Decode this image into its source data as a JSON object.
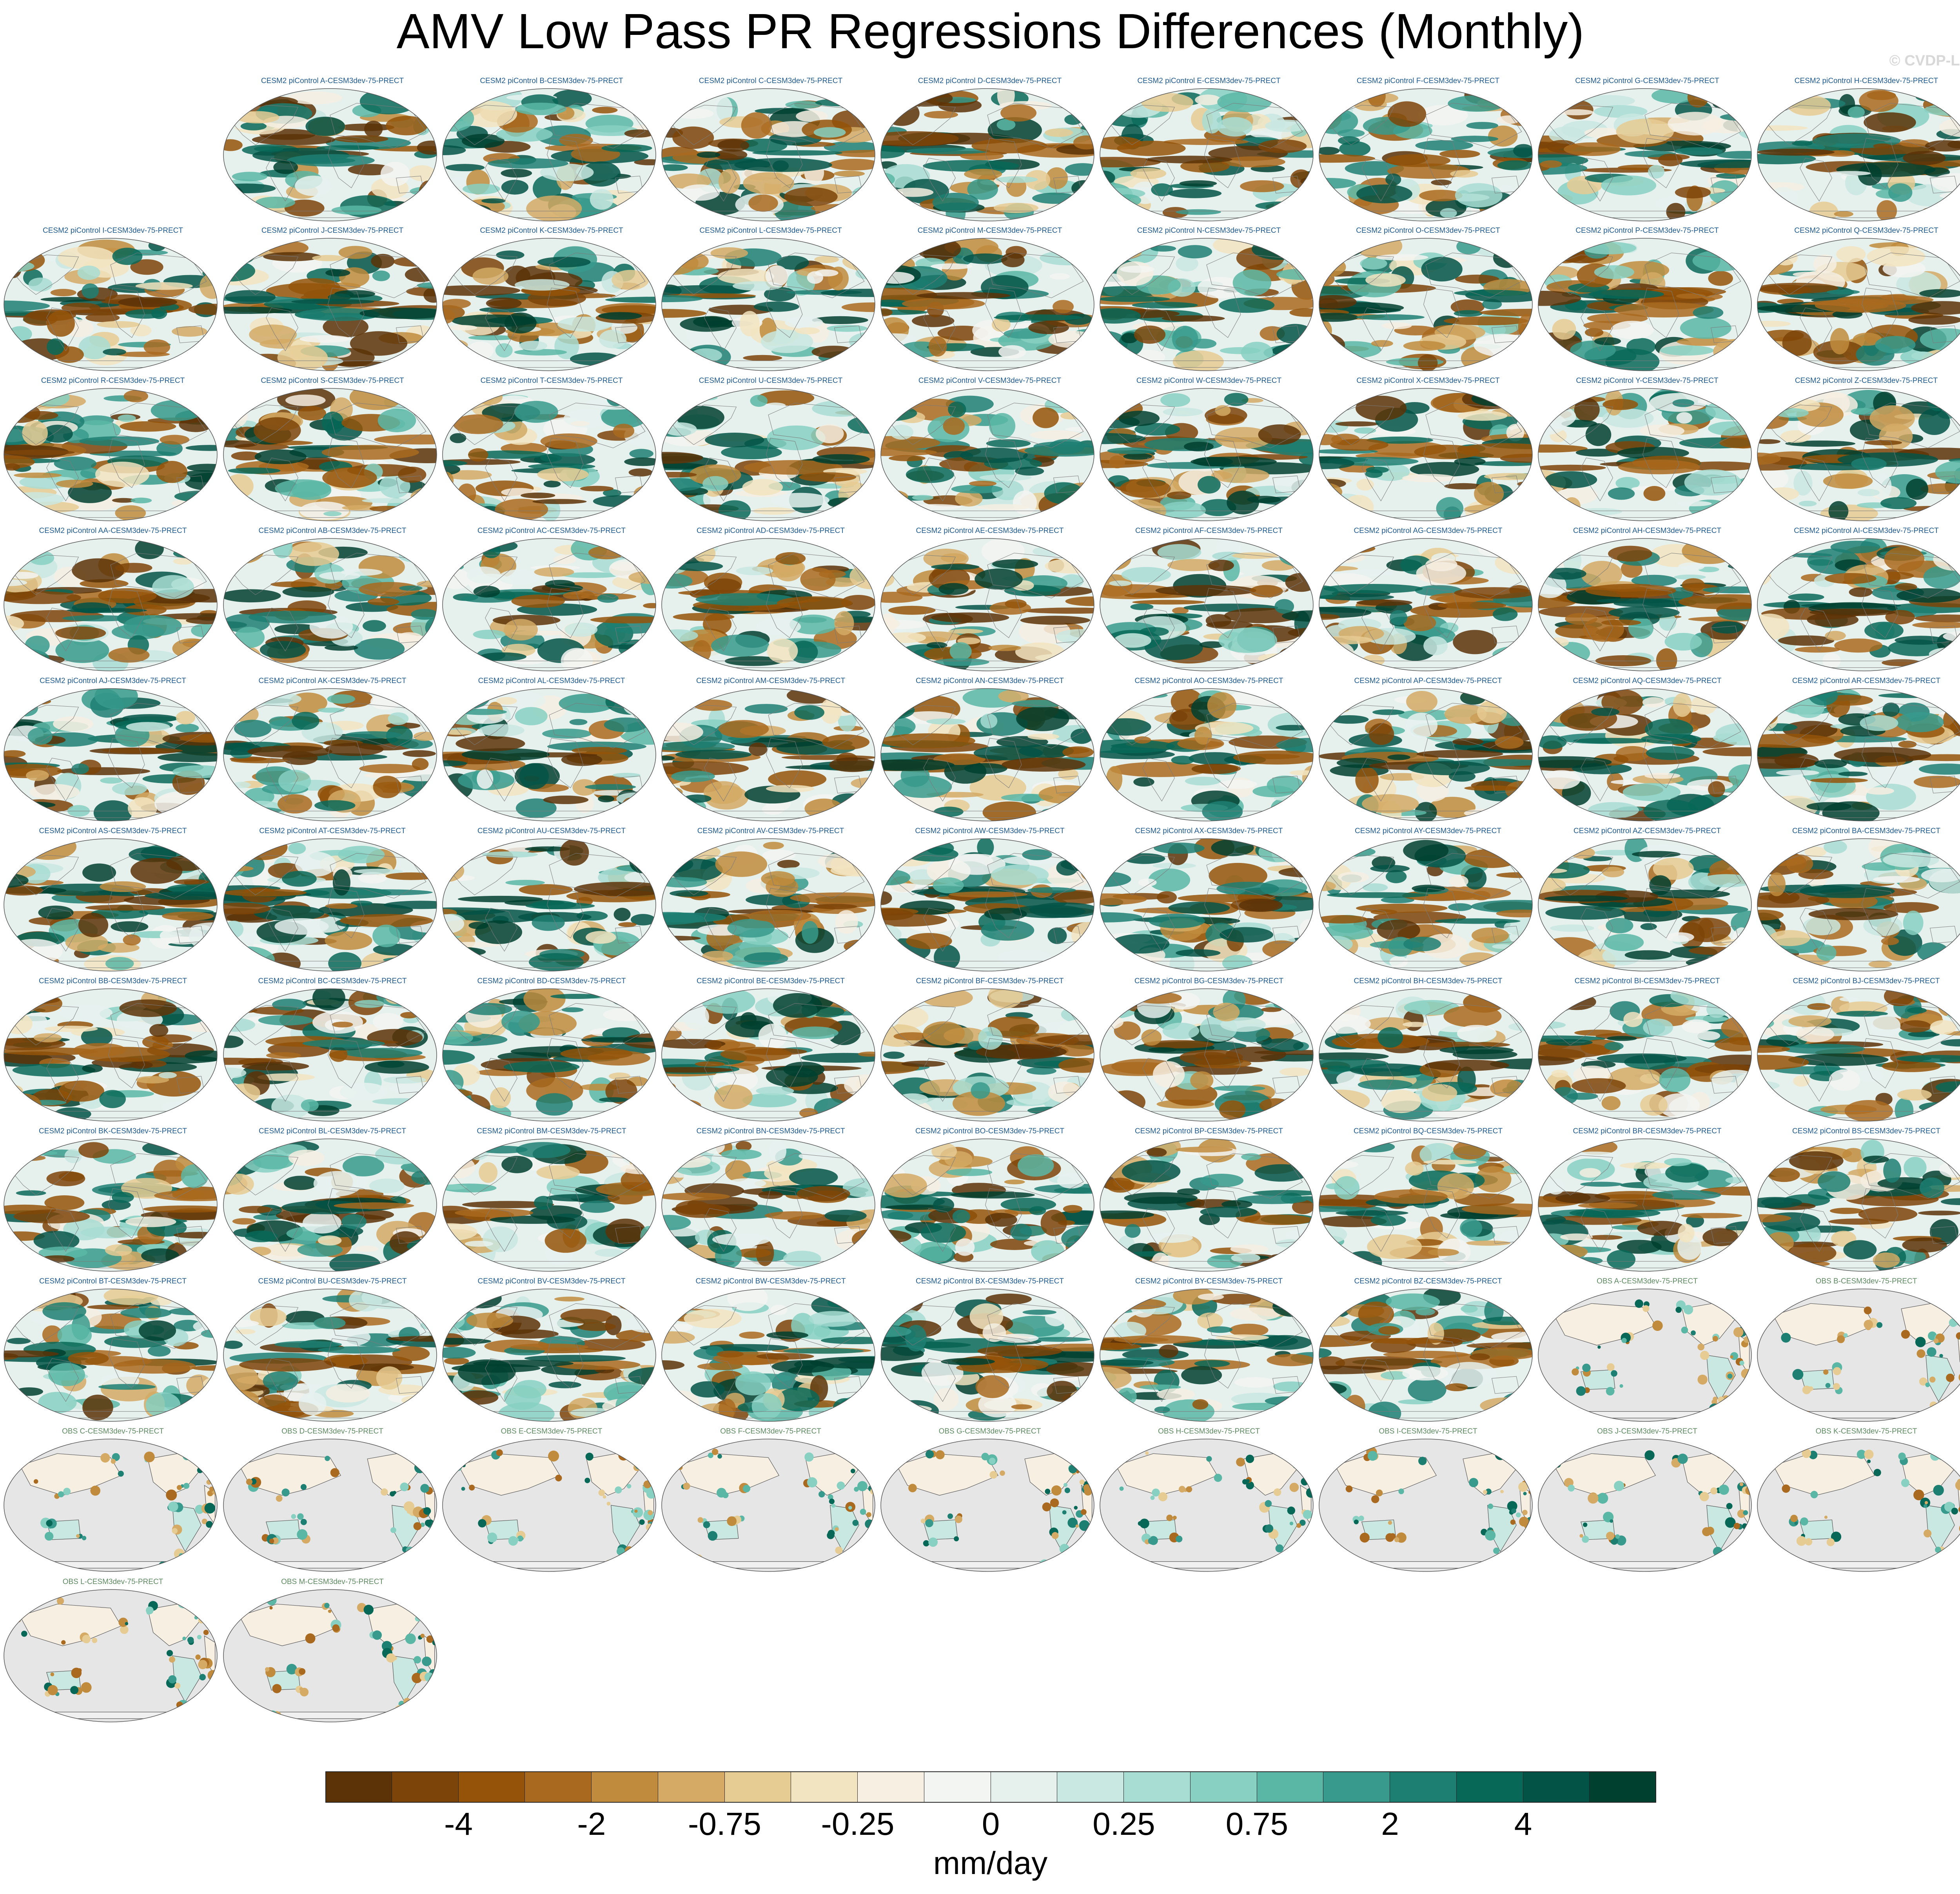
{
  "title": "AMV Low Pass PR Regressions Differences (Monthly)",
  "watermark": "© CVDP-LE",
  "colors": {
    "model_title": "#1f5a8f",
    "obs_title": "#5d8a60",
    "ocean_obs": "#e6e6e6",
    "coast": "#555555"
  },
  "chart_data": {
    "type": "heatmap",
    "projection": "robinson",
    "variable": "PR",
    "units": "mm/day",
    "panels": [
      {
        "title": "CESM2 piControl A-CESM3dev-75-PRECT",
        "kind": "model"
      },
      {
        "title": "CESM2 piControl B-CESM3dev-75-PRECT",
        "kind": "model"
      },
      {
        "title": "CESM2 piControl C-CESM3dev-75-PRECT",
        "kind": "model"
      },
      {
        "title": "CESM2 piControl D-CESM3dev-75-PRECT",
        "kind": "model"
      },
      {
        "title": "CESM2 piControl E-CESM3dev-75-PRECT",
        "kind": "model"
      },
      {
        "title": "CESM2 piControl F-CESM3dev-75-PRECT",
        "kind": "model"
      },
      {
        "title": "CESM2 piControl G-CESM3dev-75-PRECT",
        "kind": "model"
      },
      {
        "title": "CESM2 piControl H-CESM3dev-75-PRECT",
        "kind": "model"
      },
      {
        "title": "CESM2 piControl I-CESM3dev-75-PRECT",
        "kind": "model"
      },
      {
        "title": "CESM2 piControl J-CESM3dev-75-PRECT",
        "kind": "model"
      },
      {
        "title": "CESM2 piControl K-CESM3dev-75-PRECT",
        "kind": "model"
      },
      {
        "title": "CESM2 piControl L-CESM3dev-75-PRECT",
        "kind": "model"
      },
      {
        "title": "CESM2 piControl M-CESM3dev-75-PRECT",
        "kind": "model"
      },
      {
        "title": "CESM2 piControl N-CESM3dev-75-PRECT",
        "kind": "model"
      },
      {
        "title": "CESM2 piControl O-CESM3dev-75-PRECT",
        "kind": "model"
      },
      {
        "title": "CESM2 piControl P-CESM3dev-75-PRECT",
        "kind": "model"
      },
      {
        "title": "CESM2 piControl Q-CESM3dev-75-PRECT",
        "kind": "model"
      },
      {
        "title": "CESM2 piControl R-CESM3dev-75-PRECT",
        "kind": "model"
      },
      {
        "title": "CESM2 piControl S-CESM3dev-75-PRECT",
        "kind": "model"
      },
      {
        "title": "CESM2 piControl T-CESM3dev-75-PRECT",
        "kind": "model"
      },
      {
        "title": "CESM2 piControl U-CESM3dev-75-PRECT",
        "kind": "model"
      },
      {
        "title": "CESM2 piControl V-CESM3dev-75-PRECT",
        "kind": "model"
      },
      {
        "title": "CESM2 piControl W-CESM3dev-75-PRECT",
        "kind": "model"
      },
      {
        "title": "CESM2 piControl X-CESM3dev-75-PRECT",
        "kind": "model"
      },
      {
        "title": "CESM2 piControl Y-CESM3dev-75-PRECT",
        "kind": "model"
      },
      {
        "title": "CESM2 piControl Z-CESM3dev-75-PRECT",
        "kind": "model"
      },
      {
        "title": "CESM2 piControl AA-CESM3dev-75-PRECT",
        "kind": "model"
      },
      {
        "title": "CESM2 piControl AB-CESM3dev-75-PRECT",
        "kind": "model"
      },
      {
        "title": "CESM2 piControl AC-CESM3dev-75-PRECT",
        "kind": "model"
      },
      {
        "title": "CESM2 piControl AD-CESM3dev-75-PRECT",
        "kind": "model"
      },
      {
        "title": "CESM2 piControl AE-CESM3dev-75-PRECT",
        "kind": "model"
      },
      {
        "title": "CESM2 piControl AF-CESM3dev-75-PRECT",
        "kind": "model"
      },
      {
        "title": "CESM2 piControl AG-CESM3dev-75-PRECT",
        "kind": "model"
      },
      {
        "title": "CESM2 piControl AH-CESM3dev-75-PRECT",
        "kind": "model"
      },
      {
        "title": "CESM2 piControl AI-CESM3dev-75-PRECT",
        "kind": "model"
      },
      {
        "title": "CESM2 piControl AJ-CESM3dev-75-PRECT",
        "kind": "model"
      },
      {
        "title": "CESM2 piControl AK-CESM3dev-75-PRECT",
        "kind": "model"
      },
      {
        "title": "CESM2 piControl AL-CESM3dev-75-PRECT",
        "kind": "model"
      },
      {
        "title": "CESM2 piControl AM-CESM3dev-75-PRECT",
        "kind": "model"
      },
      {
        "title": "CESM2 piControl AN-CESM3dev-75-PRECT",
        "kind": "model"
      },
      {
        "title": "CESM2 piControl AO-CESM3dev-75-PRECT",
        "kind": "model"
      },
      {
        "title": "CESM2 piControl AP-CESM3dev-75-PRECT",
        "kind": "model"
      },
      {
        "title": "CESM2 piControl AQ-CESM3dev-75-PRECT",
        "kind": "model"
      },
      {
        "title": "CESM2 piControl AR-CESM3dev-75-PRECT",
        "kind": "model"
      },
      {
        "title": "CESM2 piControl AS-CESM3dev-75-PRECT",
        "kind": "model"
      },
      {
        "title": "CESM2 piControl AT-CESM3dev-75-PRECT",
        "kind": "model"
      },
      {
        "title": "CESM2 piControl AU-CESM3dev-75-PRECT",
        "kind": "model"
      },
      {
        "title": "CESM2 piControl AV-CESM3dev-75-PRECT",
        "kind": "model"
      },
      {
        "title": "CESM2 piControl AW-CESM3dev-75-PRECT",
        "kind": "model"
      },
      {
        "title": "CESM2 piControl AX-CESM3dev-75-PRECT",
        "kind": "model"
      },
      {
        "title": "CESM2 piControl AY-CESM3dev-75-PRECT",
        "kind": "model"
      },
      {
        "title": "CESM2 piControl AZ-CESM3dev-75-PRECT",
        "kind": "model"
      },
      {
        "title": "CESM2 piControl BA-CESM3dev-75-PRECT",
        "kind": "model"
      },
      {
        "title": "CESM2 piControl BB-CESM3dev-75-PRECT",
        "kind": "model"
      },
      {
        "title": "CESM2 piControl BC-CESM3dev-75-PRECT",
        "kind": "model"
      },
      {
        "title": "CESM2 piControl BD-CESM3dev-75-PRECT",
        "kind": "model"
      },
      {
        "title": "CESM2 piControl BE-CESM3dev-75-PRECT",
        "kind": "model"
      },
      {
        "title": "CESM2 piControl BF-CESM3dev-75-PRECT",
        "kind": "model"
      },
      {
        "title": "CESM2 piControl BG-CESM3dev-75-PRECT",
        "kind": "model"
      },
      {
        "title": "CESM2 piControl BH-CESM3dev-75-PRECT",
        "kind": "model"
      },
      {
        "title": "CESM2 piControl BI-CESM3dev-75-PRECT",
        "kind": "model"
      },
      {
        "title": "CESM2 piControl BJ-CESM3dev-75-PRECT",
        "kind": "model"
      },
      {
        "title": "CESM2 piControl BK-CESM3dev-75-PRECT",
        "kind": "model"
      },
      {
        "title": "CESM2 piControl BL-CESM3dev-75-PRECT",
        "kind": "model"
      },
      {
        "title": "CESM2 piControl BM-CESM3dev-75-PRECT",
        "kind": "model"
      },
      {
        "title": "CESM2 piControl BN-CESM3dev-75-PRECT",
        "kind": "model"
      },
      {
        "title": "CESM2 piControl BO-CESM3dev-75-PRECT",
        "kind": "model"
      },
      {
        "title": "CESM2 piControl BP-CESM3dev-75-PRECT",
        "kind": "model"
      },
      {
        "title": "CESM2 piControl BQ-CESM3dev-75-PRECT",
        "kind": "model"
      },
      {
        "title": "CESM2 piControl BR-CESM3dev-75-PRECT",
        "kind": "model"
      },
      {
        "title": "CESM2 piControl BS-CESM3dev-75-PRECT",
        "kind": "model"
      },
      {
        "title": "CESM2 piControl BT-CESM3dev-75-PRECT",
        "kind": "model"
      },
      {
        "title": "CESM2 piControl BU-CESM3dev-75-PRECT",
        "kind": "model"
      },
      {
        "title": "CESM2 piControl BV-CESM3dev-75-PRECT",
        "kind": "model"
      },
      {
        "title": "CESM2 piControl BW-CESM3dev-75-PRECT",
        "kind": "model"
      },
      {
        "title": "CESM2 piControl BX-CESM3dev-75-PRECT",
        "kind": "model"
      },
      {
        "title": "CESM2 piControl BY-CESM3dev-75-PRECT",
        "kind": "model"
      },
      {
        "title": "CESM2 piControl BZ-CESM3dev-75-PRECT",
        "kind": "model"
      },
      {
        "title": "OBS A-CESM3dev-75-PRECT",
        "kind": "obs"
      },
      {
        "title": "OBS B-CESM3dev-75-PRECT",
        "kind": "obs"
      },
      {
        "title": "OBS C-CESM3dev-75-PRECT",
        "kind": "obs"
      },
      {
        "title": "OBS D-CESM3dev-75-PRECT",
        "kind": "obs"
      },
      {
        "title": "OBS E-CESM3dev-75-PRECT",
        "kind": "obs"
      },
      {
        "title": "OBS F-CESM3dev-75-PRECT",
        "kind": "obs"
      },
      {
        "title": "OBS G-CESM3dev-75-PRECT",
        "kind": "obs"
      },
      {
        "title": "OBS H-CESM3dev-75-PRECT",
        "kind": "obs"
      },
      {
        "title": "OBS I-CESM3dev-75-PRECT",
        "kind": "obs"
      },
      {
        "title": "OBS J-CESM3dev-75-PRECT",
        "kind": "obs"
      },
      {
        "title": "OBS K-CESM3dev-75-PRECT",
        "kind": "obs"
      },
      {
        "title": "OBS L-CESM3dev-75-PRECT",
        "kind": "obs"
      },
      {
        "title": "OBS M-CESM3dev-75-PRECT",
        "kind": "obs"
      }
    ],
    "colorbar": {
      "colors": [
        "#5c3307",
        "#7c4408",
        "#945309",
        "#a96a1f",
        "#c08b3c",
        "#d4aa65",
        "#e6cb93",
        "#f2e4c0",
        "#f6efe2",
        "#f3f5f2",
        "#e6f1ee",
        "#c9e8e1",
        "#a8ddd3",
        "#87d0c2",
        "#5ab7a6",
        "#379a8c",
        "#1d7f72",
        "#086858",
        "#035447",
        "#00402f"
      ],
      "labels": [
        "-4",
        "-2",
        "-0.75",
        "-0.25",
        "0",
        "0.25",
        "0.75",
        "2",
        "4"
      ],
      "units": "mm/day"
    }
  }
}
